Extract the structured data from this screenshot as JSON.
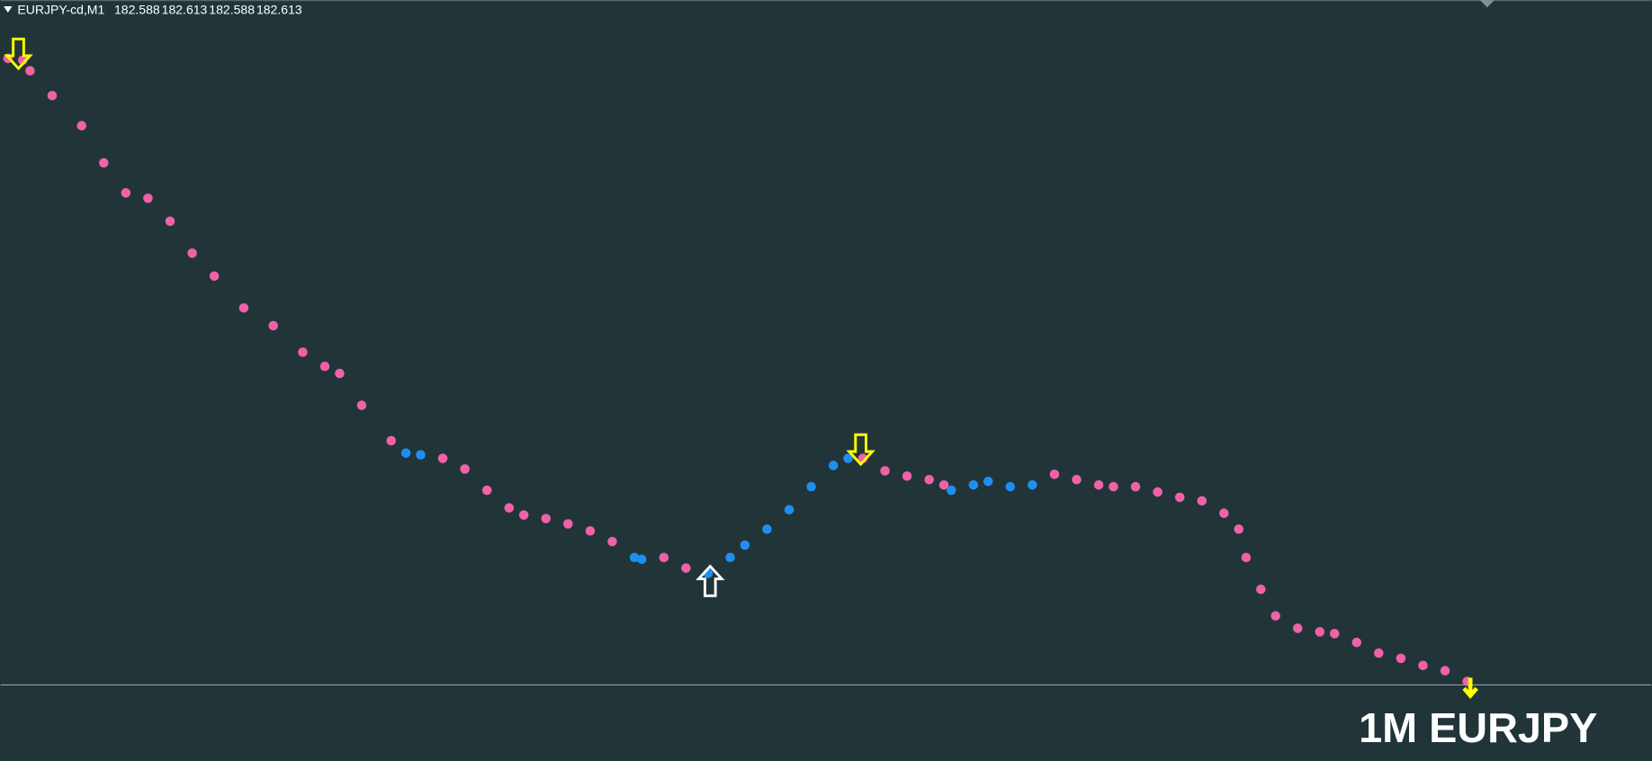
{
  "chart_data": {
    "type": "dots",
    "title": "EURJPY-cd,M1",
    "ohlc": [
      182.588,
      182.613,
      182.588,
      182.613
    ],
    "annotation": "1M EURJPY",
    "x": [
      1,
      3,
      4,
      7,
      11,
      14,
      17,
      20,
      23,
      26,
      29,
      33,
      37,
      41,
      44,
      46,
      49,
      53,
      55,
      57,
      60,
      63,
      66,
      69,
      71,
      74,
      77,
      80,
      83,
      86,
      87,
      90,
      93,
      96,
      99,
      101,
      104,
      107,
      110,
      113,
      115,
      117,
      120,
      123,
      126,
      128,
      129,
      132,
      134,
      137,
      140,
      143,
      146,
      149,
      151,
      154,
      157,
      160,
      163,
      166,
      168,
      169,
      171,
      173,
      176,
      179,
      181,
      184,
      187,
      190,
      193,
      196,
      199
    ],
    "xlim": [
      0,
      224
    ],
    "ylim": [
      182.57,
      183.0
    ],
    "series": [
      {
        "color": "#f062a8",
        "values": [
          182.967,
          182.966,
          182.96,
          182.946,
          182.929,
          182.908,
          182.891,
          182.888,
          182.875,
          182.857,
          182.844,
          182.826,
          182.816,
          182.801,
          182.793,
          182.789,
          182.771,
          182.751,
          null,
          null,
          182.741,
          182.735,
          182.723,
          182.713,
          182.709,
          182.707,
          182.704,
          182.7,
          182.694,
          null,
          null,
          182.685,
          182.679,
          null,
          null,
          null,
          null,
          null,
          null,
          null,
          null,
          182.741,
          182.734,
          182.731,
          182.729,
          182.726,
          null,
          null,
          null,
          null,
          null,
          182.732,
          182.729,
          182.726,
          182.725,
          182.725,
          182.722,
          182.719,
          182.717,
          182.71,
          182.701,
          182.685,
          182.667,
          182.652,
          182.645,
          182.643,
          182.642,
          182.637,
          182.631,
          182.628,
          182.624,
          182.621,
          182.615
        ]
      },
      {
        "color": "#1e8ff0",
        "values": [
          null,
          null,
          null,
          null,
          null,
          null,
          null,
          null,
          null,
          null,
          null,
          null,
          null,
          null,
          null,
          null,
          null,
          null,
          182.744,
          182.743,
          null,
          null,
          null,
          null,
          null,
          null,
          null,
          null,
          null,
          182.685,
          182.684,
          null,
          null,
          182.676,
          182.685,
          182.692,
          182.701,
          182.712,
          182.725,
          182.737,
          182.741,
          null,
          null,
          null,
          null,
          null,
          182.723,
          182.726,
          182.728,
          182.725,
          182.726,
          null,
          null,
          null,
          null,
          null,
          null,
          null,
          null,
          null,
          null,
          null,
          null,
          null,
          null,
          null,
          null,
          null,
          null,
          null,
          null,
          null,
          null
        ]
      }
    ]
  }
}
